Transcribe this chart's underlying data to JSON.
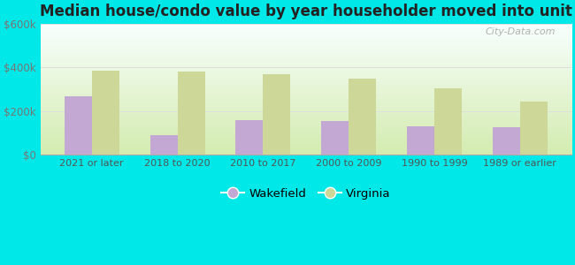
{
  "title": "Median house/condo value by year householder moved into unit",
  "categories": [
    "2021 or later",
    "2018 to 2020",
    "2010 to 2017",
    "2000 to 2009",
    "1990 to 1999",
    "1989 or earlier"
  ],
  "wakefield_values": [
    268000,
    90000,
    160000,
    155000,
    130000,
    125000
  ],
  "virginia_values": [
    385000,
    380000,
    370000,
    350000,
    305000,
    245000
  ],
  "wakefield_color": "#c4a8d4",
  "virginia_color": "#cdd898",
  "background_outer": "#00e8e8",
  "ylim": [
    0,
    600000
  ],
  "ytick_labels": [
    "$0",
    "$200k",
    "$400k",
    "$600k"
  ],
  "ytick_values": [
    0,
    200000,
    400000,
    600000
  ],
  "bar_width": 0.32,
  "legend_labels": [
    "Wakefield",
    "Virginia"
  ],
  "watermark": "City-Data.com"
}
